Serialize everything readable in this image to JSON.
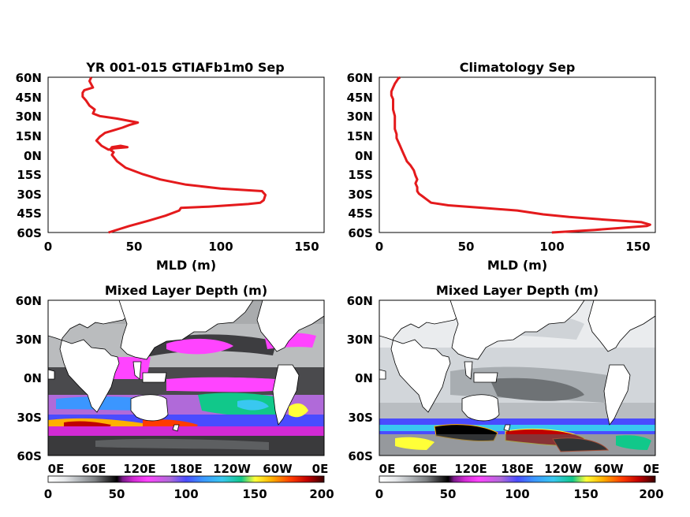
{
  "chart_data": [
    {
      "type": "line",
      "title": "YR 001-015 GTIAFb1m0 Sep",
      "xlabel": "MLD (m)",
      "ylabel": "",
      "xlim": [
        0,
        160
      ],
      "xticks": [
        "0",
        "50",
        "100",
        "150"
      ],
      "ylim": [
        -60,
        60
      ],
      "yticks": [
        "60N",
        "45N",
        "30N",
        "15N",
        "0N",
        "15S",
        "30S",
        "45S",
        "60S"
      ],
      "grid": false,
      "line_color": "#e41a1c",
      "series": [
        {
          "x": [
            35,
            47,
            58,
            68,
            76,
            77,
            93,
            105,
            116,
            123,
            125,
            126,
            124,
            100,
            80,
            65,
            55,
            45,
            40,
            37,
            38,
            36,
            37,
            42,
            46,
            38,
            35,
            31,
            28,
            30,
            33,
            38,
            43,
            47,
            52,
            40,
            30,
            26,
            27,
            24,
            22,
            20,
            20,
            21,
            26,
            24,
            25
          ],
          "y": [
            -60,
            -55,
            -51,
            -47,
            -43,
            -41,
            -40,
            -39,
            -38,
            -37,
            -35,
            -31,
            -28,
            -26,
            -23,
            -19,
            -15,
            -10,
            -5,
            0,
            2,
            4,
            6,
            7,
            6,
            5,
            4,
            7,
            11,
            14,
            17,
            19,
            21,
            23,
            25,
            28,
            30,
            32,
            35,
            38,
            42,
            45,
            48,
            50,
            52,
            57,
            60
          ]
        }
      ]
    },
    {
      "type": "line",
      "title": "Climatology Sep",
      "xlabel": "MLD (m)",
      "ylabel": "",
      "xlim": [
        0,
        160
      ],
      "xticks": [
        "0",
        "50",
        "100",
        "150"
      ],
      "ylim": [
        -60,
        60
      ],
      "yticks": [
        "60N",
        "45N",
        "30N",
        "15N",
        "0N",
        "15S",
        "30S",
        "45S",
        "60S"
      ],
      "grid": false,
      "line_color": "#e41a1c",
      "series": [
        {
          "x": [
            100,
            125,
            155,
            157,
            152,
            130,
            110,
            95,
            80,
            60,
            40,
            30,
            27,
            25,
            23,
            22,
            22,
            21,
            22,
            21,
            20,
            18,
            16,
            15,
            14,
            13,
            12,
            11,
            10,
            10,
            9,
            9,
            9,
            8,
            8,
            8,
            7,
            7,
            8,
            9,
            10,
            11,
            12
          ],
          "y": [
            -60,
            -58,
            -55,
            -54,
            -52,
            -50,
            -48,
            -46,
            -43,
            -41,
            -39,
            -37,
            -34,
            -32,
            -30,
            -28,
            -25,
            -22,
            -19,
            -16,
            -12,
            -8,
            -5,
            -2,
            1,
            4,
            7,
            10,
            13,
            16,
            20,
            25,
            30,
            35,
            40,
            43,
            46,
            49,
            52,
            55,
            57,
            59,
            60
          ]
        }
      ]
    },
    {
      "type": "heatmap",
      "title": "Mixed Layer Depth (m)",
      "xticks": [
        "0E",
        "60E",
        "120E",
        "180E",
        "120W",
        "60W",
        "0E"
      ],
      "yticks": [
        "60N",
        "30N",
        "0N",
        "30S",
        "60S"
      ],
      "colorbar_ticks": [
        "0",
        "50",
        "100",
        "150",
        "200"
      ]
    },
    {
      "type": "heatmap",
      "title": "Mixed Layer Depth (m)",
      "xticks": [
        "0E",
        "60E",
        "120E",
        "180E",
        "120W",
        "60W",
        "0E"
      ],
      "yticks": [
        "60N",
        "30N",
        "0N",
        "30S",
        "60S"
      ],
      "colorbar_ticks": [
        "0",
        "50",
        "100",
        "150",
        "200"
      ]
    }
  ],
  "colors": {
    "line": "#e41a1c",
    "land": "#ffffff",
    "colorbar": [
      "#ffffff",
      "#e6e8ea",
      "#b4b8bc",
      "#7e8184",
      "#3e3e40",
      "#000000",
      "#7a1a8a",
      "#d22ad4",
      "#ff44ff",
      "#b06ad9",
      "#4a4cff",
      "#3b96ff",
      "#39c8f0",
      "#11c88a",
      "#ffff38",
      "#ffb000",
      "#ff3b00",
      "#c00000",
      "#3a0000"
    ]
  }
}
